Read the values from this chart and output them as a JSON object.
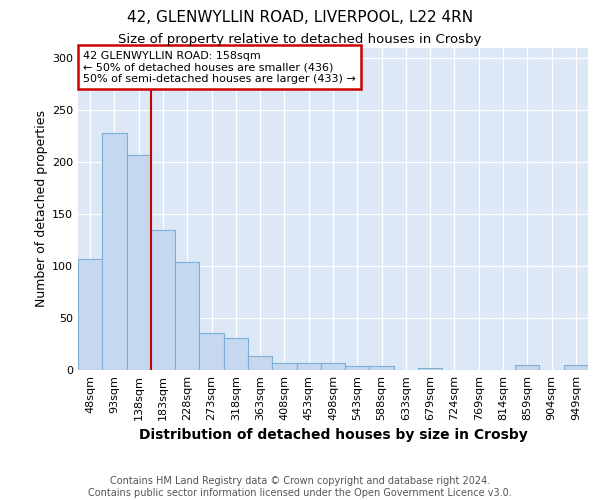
{
  "title": "42, GLENWYLLIN ROAD, LIVERPOOL, L22 4RN",
  "subtitle": "Size of property relative to detached houses in Crosby",
  "xlabel": "Distribution of detached houses by size in Crosby",
  "ylabel": "Number of detached properties",
  "categories": [
    "48sqm",
    "93sqm",
    "138sqm",
    "183sqm",
    "228sqm",
    "273sqm",
    "318sqm",
    "363sqm",
    "408sqm",
    "453sqm",
    "498sqm",
    "543sqm",
    "588sqm",
    "633sqm",
    "679sqm",
    "724sqm",
    "769sqm",
    "814sqm",
    "859sqm",
    "904sqm",
    "949sqm"
  ],
  "values": [
    107,
    228,
    207,
    135,
    104,
    36,
    31,
    13,
    7,
    7,
    7,
    4,
    4,
    0,
    2,
    0,
    0,
    0,
    5,
    0,
    5
  ],
  "bar_color": "#c5d8f0",
  "bar_edge_color": "#7bafd4",
  "red_line_x": 2.5,
  "annotation_text": "42 GLENWYLLIN ROAD: 158sqm\n← 50% of detached houses are smaller (436)\n50% of semi-detached houses are larger (433) →",
  "annotation_box_color": "white",
  "annotation_box_edge_color": "#cc0000",
  "red_line_color": "#cc0000",
  "ylim": [
    0,
    310
  ],
  "yticks": [
    0,
    50,
    100,
    150,
    200,
    250,
    300
  ],
  "footer": "Contains HM Land Registry data © Crown copyright and database right 2024.\nContains public sector information licensed under the Open Government Licence v3.0.",
  "bg_color": "#dce8f5",
  "title_fontsize": 11,
  "subtitle_fontsize": 9.5,
  "xlabel_fontsize": 10,
  "ylabel_fontsize": 9,
  "tick_fontsize": 8,
  "footer_fontsize": 7,
  "ann_fontsize": 8
}
